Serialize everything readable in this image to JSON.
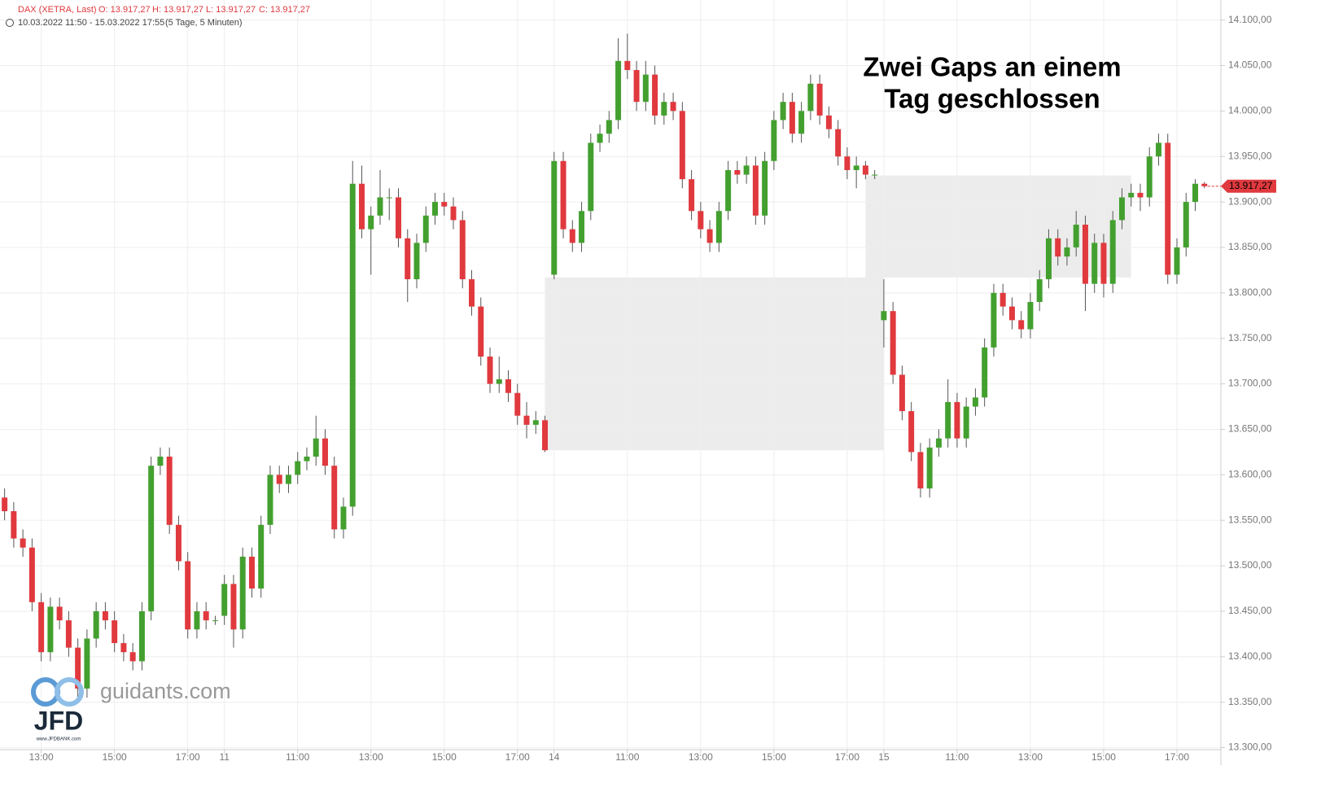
{
  "header": {
    "symbol": "DAX (XETRA, Last)",
    "ohlc": [
      "O: 13.917,27",
      "H: 13.917,27",
      "L: 13.917,27",
      "C: 13.917,27"
    ],
    "range": "10.03.2022 11:50 - 15.03.2022 17:55",
    "period": "(5 Tage, 5 Minuten)"
  },
  "logo": {
    "site": "guidants.com",
    "brand": "JFD",
    "url": "www.JFDBANK.com"
  },
  "chart_data": {
    "type": "candlestick",
    "annotation": [
      "Zwei Gaps an einem",
      "Tag geschlossen"
    ],
    "up_color": "#43a02f",
    "down_color": "#e0393e",
    "wick_color": "#555555",
    "zone_color": "#ececec",
    "grid": true,
    "last_price": {
      "value": 13917.27,
      "label": "13.917,27"
    },
    "xlim": [
      -0.5,
      132.8
    ],
    "ylim": [
      13298,
      14122
    ],
    "xticks": [
      {
        "value": 4,
        "label": "13:00"
      },
      {
        "value": 12,
        "label": "15:00"
      },
      {
        "value": 20,
        "label": "17:00"
      },
      {
        "value": 24,
        "label": "11"
      },
      {
        "value": 32,
        "label": "11:00"
      },
      {
        "value": 40,
        "label": "13:00"
      },
      {
        "value": 48,
        "label": "15:00"
      },
      {
        "value": 56,
        "label": "17:00"
      },
      {
        "value": 60,
        "label": "14"
      },
      {
        "value": 68,
        "label": "11:00"
      },
      {
        "value": 76,
        "label": "13:00"
      },
      {
        "value": 84,
        "label": "15:00"
      },
      {
        "value": 92,
        "label": "17:00"
      },
      {
        "value": 96,
        "label": "15"
      },
      {
        "value": 104,
        "label": "11:00"
      },
      {
        "value": 112,
        "label": "13:00"
      },
      {
        "value": 120,
        "label": "15:00"
      },
      {
        "value": 128,
        "label": "17:00"
      }
    ],
    "yticks": [
      {
        "value": 13300,
        "label": "13.300,00"
      },
      {
        "value": 13350,
        "label": "13.350,00"
      },
      {
        "value": 13400,
        "label": "13.400,00"
      },
      {
        "value": 13450,
        "label": "13.450,00"
      },
      {
        "value": 13500,
        "label": "13.500,00"
      },
      {
        "value": 13550,
        "label": "13.550,00"
      },
      {
        "value": 13600,
        "label": "13.600,00"
      },
      {
        "value": 13650,
        "label": "13.650,00"
      },
      {
        "value": 13700,
        "label": "13.700,00"
      },
      {
        "value": 13750,
        "label": "13.750,00"
      },
      {
        "value": 13800,
        "label": "13.800,00"
      },
      {
        "value": 13850,
        "label": "13.850,00"
      },
      {
        "value": 13900,
        "label": "13.900,00"
      },
      {
        "value": 13950,
        "label": "13.950,00"
      },
      {
        "value": 14000,
        "label": "14.000,00"
      },
      {
        "value": 14050,
        "label": "14.050,00"
      },
      {
        "value": 14100,
        "label": "14.100,00"
      }
    ],
    "zones": [
      {
        "x": [
          59,
          96
        ],
        "y": [
          13627,
          13817
        ]
      },
      {
        "x": [
          94,
          123
        ],
        "y": [
          13817,
          13929
        ]
      }
    ],
    "ohlc": [
      [
        13575,
        13585,
        13550,
        13560
      ],
      [
        13560,
        13570,
        13520,
        13530
      ],
      [
        13530,
        13540,
        13510,
        13520
      ],
      [
        13520,
        13530,
        13450,
        13460
      ],
      [
        13460,
        13470,
        13395,
        13405
      ],
      [
        13405,
        13465,
        13395,
        13455
      ],
      [
        13455,
        13465,
        13430,
        13440
      ],
      [
        13440,
        13450,
        13400,
        13410
      ],
      [
        13410,
        13420,
        13355,
        13365
      ],
      [
        13365,
        13430,
        13355,
        13420
      ],
      [
        13420,
        13460,
        13410,
        13450
      ],
      [
        13450,
        13460,
        13430,
        13440
      ],
      [
        13440,
        13450,
        13405,
        13415
      ],
      [
        13415,
        13425,
        13395,
        13405
      ],
      [
        13405,
        13415,
        13385,
        13395
      ],
      [
        13395,
        13460,
        13385,
        13450
      ],
      [
        13450,
        13620,
        13440,
        13610
      ],
      [
        13610,
        13630,
        13600,
        13620
      ],
      [
        13620,
        13630,
        13535,
        13545
      ],
      [
        13545,
        13555,
        13495,
        13505
      ],
      [
        13505,
        13515,
        13420,
        13430
      ],
      [
        13430,
        13460,
        13420,
        13450
      ],
      [
        13450,
        13460,
        13430,
        13440
      ],
      [
        13440,
        13445,
        13435,
        13440
      ],
      [
        13445,
        13490,
        13435,
        13480
      ],
      [
        13480,
        13490,
        13410,
        13430
      ],
      [
        13430,
        13520,
        13420,
        13510
      ],
      [
        13510,
        13520,
        13465,
        13475
      ],
      [
        13475,
        13555,
        13465,
        13545
      ],
      [
        13545,
        13610,
        13535,
        13600
      ],
      [
        13600,
        13610,
        13580,
        13590
      ],
      [
        13590,
        13610,
        13580,
        13600
      ],
      [
        13600,
        13625,
        13590,
        13615
      ],
      [
        13615,
        13630,
        13605,
        13620
      ],
      [
        13620,
        13665,
        13610,
        13640
      ],
      [
        13640,
        13650,
        13600,
        13610
      ],
      [
        13610,
        13620,
        13530,
        13540
      ],
      [
        13540,
        13575,
        13530,
        13565
      ],
      [
        13565,
        13945,
        13555,
        13920
      ],
      [
        13920,
        13940,
        13860,
        13870
      ],
      [
        13870,
        13895,
        13820,
        13885
      ],
      [
        13885,
        13935,
        13875,
        13905
      ],
      [
        13905,
        13915,
        13880,
        13905
      ],
      [
        13905,
        13915,
        13850,
        13860
      ],
      [
        13860,
        13870,
        13790,
        13815
      ],
      [
        13815,
        13865,
        13805,
        13855
      ],
      [
        13855,
        13895,
        13845,
        13885
      ],
      [
        13885,
        13910,
        13875,
        13900
      ],
      [
        13900,
        13910,
        13885,
        13895
      ],
      [
        13895,
        13905,
        13870,
        13880
      ],
      [
        13880,
        13890,
        13805,
        13815
      ],
      [
        13815,
        13825,
        13775,
        13785
      ],
      [
        13785,
        13795,
        13720,
        13730
      ],
      [
        13730,
        13740,
        13690,
        13700
      ],
      [
        13700,
        13730,
        13690,
        13705
      ],
      [
        13705,
        13715,
        13680,
        13690
      ],
      [
        13690,
        13700,
        13655,
        13665
      ],
      [
        13665,
        13680,
        13640,
        13655
      ],
      [
        13655,
        13670,
        13645,
        13660
      ],
      [
        13660,
        13665,
        13625,
        13627
      ],
      [
        13820,
        13955,
        13815,
        13945
      ],
      [
        13945,
        13955,
        13860,
        13870
      ],
      [
        13870,
        13880,
        13845,
        13855
      ],
      [
        13855,
        13900,
        13845,
        13890
      ],
      [
        13890,
        13975,
        13880,
        13965
      ],
      [
        13965,
        13985,
        13955,
        13975
      ],
      [
        13975,
        14000,
        13965,
        13990
      ],
      [
        13990,
        14080,
        13980,
        14055
      ],
      [
        14055,
        14085,
        14035,
        14045
      ],
      [
        14045,
        14055,
        14000,
        14010
      ],
      [
        14010,
        14055,
        14000,
        14040
      ],
      [
        14040,
        14050,
        13985,
        13995
      ],
      [
        13995,
        14020,
        13985,
        14010
      ],
      [
        14010,
        14020,
        13990,
        14000
      ],
      [
        14000,
        14010,
        13915,
        13925
      ],
      [
        13925,
        13935,
        13880,
        13890
      ],
      [
        13890,
        13900,
        13860,
        13870
      ],
      [
        13870,
        13880,
        13845,
        13855
      ],
      [
        13855,
        13900,
        13845,
        13890
      ],
      [
        13890,
        13945,
        13880,
        13935
      ],
      [
        13935,
        13945,
        13920,
        13930
      ],
      [
        13930,
        13950,
        13920,
        13940
      ],
      [
        13940,
        13950,
        13875,
        13885
      ],
      [
        13885,
        13955,
        13875,
        13945
      ],
      [
        13945,
        14000,
        13935,
        13990
      ],
      [
        13990,
        14020,
        13980,
        14010
      ],
      [
        14010,
        14020,
        13965,
        13975
      ],
      [
        13975,
        14010,
        13965,
        14000
      ],
      [
        14000,
        14040,
        13990,
        14030
      ],
      [
        14030,
        14040,
        13985,
        13995
      ],
      [
        13995,
        14005,
        13970,
        13980
      ],
      [
        13980,
        13990,
        13940,
        13950
      ],
      [
        13950,
        13960,
        13925,
        13935
      ],
      [
        13935,
        13950,
        13915,
        13940
      ],
      [
        13940,
        13945,
        13925,
        13930
      ],
      [
        13930,
        13935,
        13925,
        13930
      ],
      [
        13770,
        13815,
        13740,
        13780
      ],
      [
        13780,
        13790,
        13700,
        13710
      ],
      [
        13710,
        13720,
        13660,
        13670
      ],
      [
        13670,
        13680,
        13615,
        13625
      ],
      [
        13625,
        13635,
        13575,
        13585
      ],
      [
        13585,
        13640,
        13575,
        13630
      ],
      [
        13630,
        13650,
        13620,
        13640
      ],
      [
        13640,
        13705,
        13630,
        13680
      ],
      [
        13680,
        13690,
        13630,
        13640
      ],
      [
        13640,
        13685,
        13630,
        13675
      ],
      [
        13675,
        13695,
        13665,
        13685
      ],
      [
        13685,
        13750,
        13675,
        13740
      ],
      [
        13740,
        13810,
        13730,
        13800
      ],
      [
        13800,
        13810,
        13775,
        13785
      ],
      [
        13785,
        13795,
        13760,
        13770
      ],
      [
        13770,
        13780,
        13750,
        13760
      ],
      [
        13760,
        13800,
        13750,
        13790
      ],
      [
        13790,
        13825,
        13780,
        13815
      ],
      [
        13815,
        13870,
        13805,
        13860
      ],
      [
        13860,
        13870,
        13830,
        13840
      ],
      [
        13840,
        13860,
        13830,
        13850
      ],
      [
        13850,
        13890,
        13840,
        13875
      ],
      [
        13875,
        13885,
        13780,
        13810
      ],
      [
        13810,
        13865,
        13800,
        13855
      ],
      [
        13855,
        13865,
        13795,
        13810
      ],
      [
        13810,
        13890,
        13800,
        13880
      ],
      [
        13880,
        13915,
        13870,
        13905
      ],
      [
        13905,
        13920,
        13895,
        13910
      ],
      [
        13910,
        13920,
        13890,
        13905
      ],
      [
        13905,
        13960,
        13895,
        13950
      ],
      [
        13950,
        13975,
        13940,
        13965
      ],
      [
        13965,
        13975,
        13810,
        13820
      ],
      [
        13820,
        13860,
        13810,
        13850
      ],
      [
        13850,
        13910,
        13840,
        13900
      ],
      [
        13900,
        13925,
        13890,
        13920
      ],
      [
        13920,
        13922,
        13915,
        13917.27
      ]
    ]
  }
}
